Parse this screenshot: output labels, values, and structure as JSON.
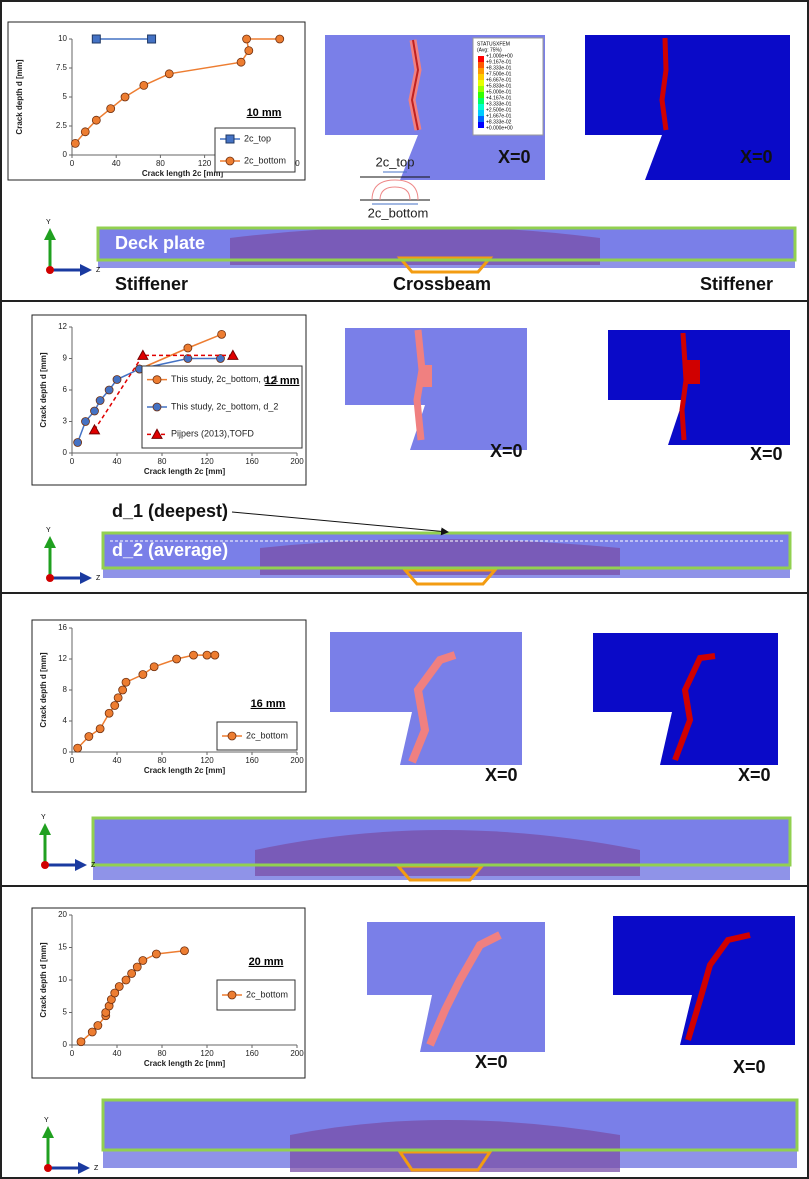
{
  "chart_data": [
    {
      "type": "line",
      "annotation": "10 mm",
      "xlabel": "Crack length 2c [mm]",
      "ylabel": "Crack depth d [mm]",
      "xlim": [
        0,
        200
      ],
      "xticks": [
        0,
        40,
        80,
        120,
        160,
        200
      ],
      "ylim": [
        0,
        10
      ],
      "yticks": [
        0,
        2.5,
        5,
        7.5,
        10
      ],
      "series": [
        {
          "name": "2c_top",
          "color": "#4472c4",
          "marker": "square",
          "linestyle": "solid",
          "x": [
            22,
            72
          ],
          "values": [
            10,
            10
          ]
        },
        {
          "name": "2c_bottom",
          "color": "#ed7d31",
          "marker": "circle",
          "linestyle": "solid",
          "x": [
            3,
            12,
            22,
            35,
            48,
            65,
            88,
            153,
            160,
            158,
            188
          ],
          "values": [
            1,
            2,
            3,
            4,
            5,
            6,
            7,
            8,
            9,
            10,
            10
          ]
        }
      ]
    },
    {
      "type": "line",
      "annotation": "12 mm",
      "xlabel": "Crack length 2c [mm]",
      "ylabel": "Crack depth d [mm]",
      "xlim": [
        0,
        200
      ],
      "xticks": [
        0,
        40,
        80,
        120,
        160,
        200
      ],
      "ylim": [
        0,
        12
      ],
      "yticks": [
        0,
        3,
        6,
        9,
        12
      ],
      "series": [
        {
          "name": "This study, 2c_bottom, d_1",
          "color": "#ed7d31",
          "marker": "circle",
          "linestyle": "solid",
          "x": [
            60,
            103,
            133
          ],
          "values": [
            8,
            10,
            11.3
          ]
        },
        {
          "name": "This study, 2c_bottom, d_2",
          "color": "#4472c4",
          "marker": "circle",
          "linestyle": "solid",
          "x": [
            5,
            12,
            20,
            25,
            33,
            40,
            60,
            103,
            132
          ],
          "values": [
            1,
            3,
            4,
            5,
            6,
            7,
            8,
            9,
            9
          ]
        },
        {
          "name": "Pijpers (2013),TOFD",
          "color": "#e00000",
          "marker": "triangle",
          "linestyle": "dashed",
          "x": [
            20,
            63,
            143
          ],
          "values": [
            2.2,
            9.3,
            9.3
          ]
        }
      ]
    },
    {
      "type": "line",
      "annotation": "16 mm",
      "xlabel": "Crack length 2c [mm]",
      "ylabel": "Crack depth d [mm]",
      "xlim": [
        0,
        200
      ],
      "xticks": [
        0,
        40,
        80,
        120,
        160,
        200
      ],
      "ylim": [
        0,
        16
      ],
      "yticks": [
        0,
        4,
        8,
        12,
        16
      ],
      "series": [
        {
          "name": "2c_bottom",
          "color": "#ed7d31",
          "marker": "circle",
          "linestyle": "solid",
          "x": [
            5,
            15,
            25,
            33,
            38,
            41,
            45,
            48,
            63,
            73,
            93,
            108,
            120,
            127
          ],
          "values": [
            0.5,
            2,
            3,
            5,
            6,
            7,
            8,
            9,
            10,
            11,
            12,
            12.5,
            12.5,
            12.5
          ]
        }
      ]
    },
    {
      "type": "line",
      "annotation": "20 mm",
      "xlabel": "Crack length 2c [mm]",
      "ylabel": "Crack depth d [mm]",
      "xlim": [
        0,
        200
      ],
      "xticks": [
        0,
        40,
        80,
        120,
        160,
        200
      ],
      "ylim": [
        0,
        20
      ],
      "yticks": [
        0,
        5,
        10,
        15,
        20
      ],
      "series": [
        {
          "name": "2c_bottom",
          "color": "#ed7d31",
          "marker": "circle",
          "linestyle": "solid",
          "x": [
            8,
            18,
            23,
            30,
            30,
            33,
            35,
            38,
            42,
            48,
            53,
            58,
            63,
            75,
            100
          ],
          "values": [
            0.5,
            2,
            3,
            4.5,
            5,
            6,
            7,
            8,
            9,
            10,
            11,
            12,
            13,
            14,
            14.5
          ]
        }
      ]
    }
  ],
  "panels": [
    {
      "views": [
        "X=0",
        "X=0"
      ],
      "crack_sketch": [
        "2c_top",
        "2c_bottom"
      ],
      "labels": [
        "Deck plate",
        "Stiffener",
        "Crossbeam",
        "Stiffener"
      ],
      "triad": [
        "Y",
        "Z"
      ],
      "contour_legend": {
        "title": "STATUSXFEM",
        "subtitle": "(Avg: 75%)",
        "values": [
          "+1.000e+00",
          "+9.167e-01",
          "+8.333e-01",
          "+7.500e-01",
          "+6.667e-01",
          "+5.833e-01",
          "+5.000e-01",
          "+4.167e-01",
          "+3.333e-01",
          "+2.500e-01",
          "+1.667e-01",
          "+8.333e-02",
          "+0.000e+00"
        ]
      }
    },
    {
      "views": [
        "X=0",
        "X=0"
      ],
      "labels": [
        "d_1 (deepest)",
        "d_2 (average)"
      ],
      "triad": [
        "Y",
        "Z"
      ]
    },
    {
      "views": [
        "X=0",
        "X=0"
      ],
      "triad": [
        "Y",
        "Z"
      ]
    },
    {
      "views": [
        "X=0",
        "X=0"
      ],
      "triad": [
        "Y",
        "Z"
      ]
    }
  ]
}
